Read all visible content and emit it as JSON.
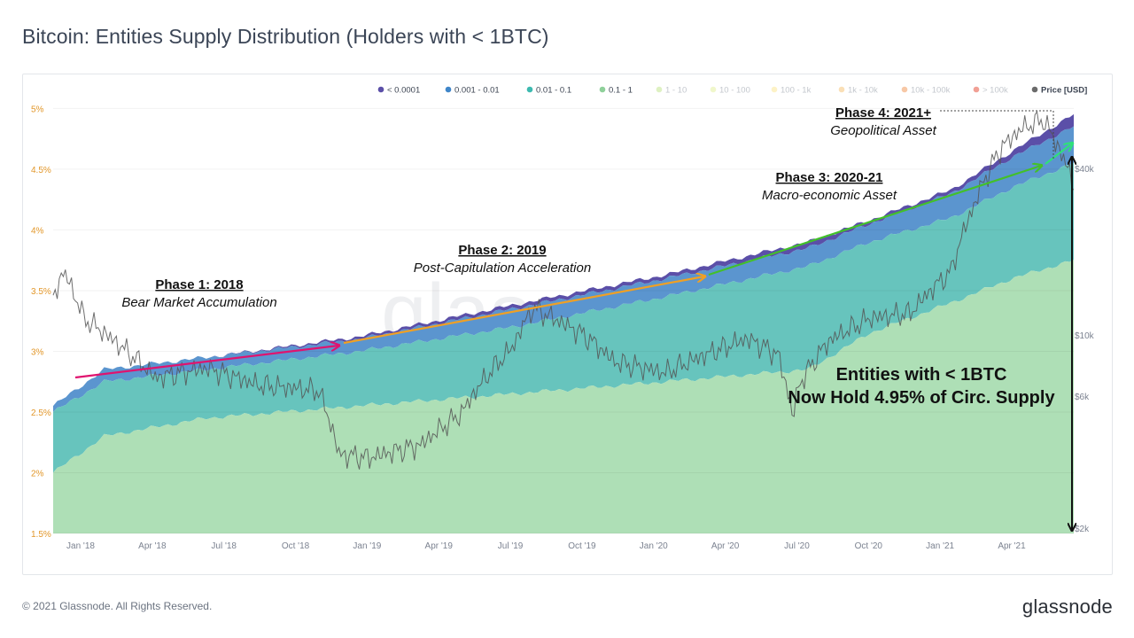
{
  "page": {
    "title": "Bitcoin: Entities Supply Distribution (Holders with < 1BTC)",
    "copyright": "© 2021 Glassnode. All Rights Reserved.",
    "logo": "glassnode",
    "watermark": "glassnode"
  },
  "colors": {
    "band_lt_0_0001": "#5b4fa8",
    "band_0_001_0_01": "#5b95cf",
    "band_0_01_0_1": "#67c4bd",
    "band_0_1_1": "#aedfb6",
    "price_line": "#555555",
    "phase1_arrow": "#e0136f",
    "phase2_arrow": "#f0a024",
    "phase3_arrow": "#43c02a",
    "phase4_arrow": "#2fe07a",
    "left_axis_text": "#e2972a",
    "right_axis_text": "#7b8290"
  },
  "chart_data": {
    "type": "area",
    "x_ticks": [
      "Jan '18",
      "Apr '18",
      "Jul '18",
      "Oct '18",
      "Jan '19",
      "Apr '19",
      "Jul '19",
      "Oct '19",
      "Jan '20",
      "Apr '20",
      "Jul '20",
      "Oct '20",
      "Jan '21",
      "Apr '21"
    ],
    "left_axis": {
      "ticks": [
        "1.5%",
        "2%",
        "2.5%",
        "3%",
        "3.5%",
        "4%",
        "4.5%",
        "5%"
      ],
      "range": [
        1.5,
        5.2
      ],
      "unit": "%"
    },
    "right_axis": {
      "label": "Price [USD]",
      "scale": "log",
      "ticks": [
        "$2k",
        "$6k",
        "$10k",
        "$40k"
      ],
      "values": [
        2000,
        6000,
        10000,
        40000
      ]
    },
    "legend": [
      {
        "name": "< 0.0001",
        "color": "#5b4fa8",
        "active": true
      },
      {
        "name": "0.001 - 0.01",
        "color": "#3f86c9",
        "active": true
      },
      {
        "name": "0.01 - 0.1",
        "color": "#3dbab0",
        "active": true
      },
      {
        "name": "0.1 - 1",
        "color": "#8fd09a",
        "active": true
      },
      {
        "name": "1 - 10",
        "color": "#c8e89a",
        "active": false
      },
      {
        "name": "10 - 100",
        "color": "#e6f2a8",
        "active": false
      },
      {
        "name": "100 - 1k",
        "color": "#fbe9a0",
        "active": false
      },
      {
        "name": "1k - 10k",
        "color": "#f7c986",
        "active": false
      },
      {
        "name": "10k - 100k",
        "color": "#f2a36a",
        "active": false
      },
      {
        "name": "> 100k",
        "color": "#e8614f",
        "active": false
      },
      {
        "name": "Price [USD]",
        "color": "#6b6b6b",
        "active": true
      }
    ],
    "legend_placement": "top-right",
    "series_keypoints": {
      "time_index": [
        0,
        0.05,
        0.15,
        0.3,
        0.45,
        0.6,
        0.74,
        0.8,
        0.88,
        0.94,
        1.0
      ],
      "band_0_1_1_top": [
        2.0,
        2.3,
        2.45,
        2.55,
        2.65,
        2.75,
        2.85,
        3.15,
        3.4,
        3.6,
        3.75
      ],
      "band_0_01_0_1_top": [
        2.5,
        2.75,
        2.85,
        3.0,
        3.2,
        3.45,
        3.7,
        3.9,
        4.1,
        4.35,
        4.55
      ],
      "band_0_001_0_01_top": [
        2.55,
        2.85,
        2.95,
        3.1,
        3.35,
        3.6,
        3.85,
        4.05,
        4.3,
        4.6,
        4.85
      ],
      "total_top": [
        2.55,
        2.85,
        2.95,
        3.12,
        3.38,
        3.63,
        3.9,
        4.08,
        4.33,
        4.65,
        4.95
      ]
    },
    "price_keypoints": {
      "time_index": [
        0,
        0.01,
        0.03,
        0.06,
        0.1,
        0.15,
        0.2,
        0.26,
        0.28,
        0.31,
        0.36,
        0.4,
        0.45,
        0.47,
        0.52,
        0.55,
        0.6,
        0.64,
        0.68,
        0.71,
        0.725,
        0.73,
        0.76,
        0.8,
        0.84,
        0.88,
        0.9,
        0.93,
        0.95,
        0.97,
        1.0
      ],
      "usd": [
        13500,
        17000,
        11500,
        9500,
        7000,
        7600,
        6600,
        6300,
        3700,
        3600,
        4000,
        5200,
        9000,
        12500,
        10000,
        8000,
        7300,
        8500,
        9700,
        8500,
        5000,
        6500,
        9500,
        11500,
        12000,
        17000,
        28000,
        48000,
        56000,
        60000,
        35000
      ]
    },
    "annotations": [
      {
        "heading": "Phase 1: 2018",
        "subtitle": "Bear Market Accumulation"
      },
      {
        "heading": "Phase 2: 2019",
        "subtitle": "Post-Capitulation Acceleration"
      },
      {
        "heading": "Phase 3: 2020-21",
        "subtitle": "Macro-economic Asset"
      },
      {
        "heading": "Phase 4: 2021+",
        "subtitle": "Geopolitical Asset"
      }
    ],
    "callout": {
      "line1": "Entities with < 1BTC",
      "line2": "Now Hold 4.95% of Circ. Supply"
    }
  }
}
